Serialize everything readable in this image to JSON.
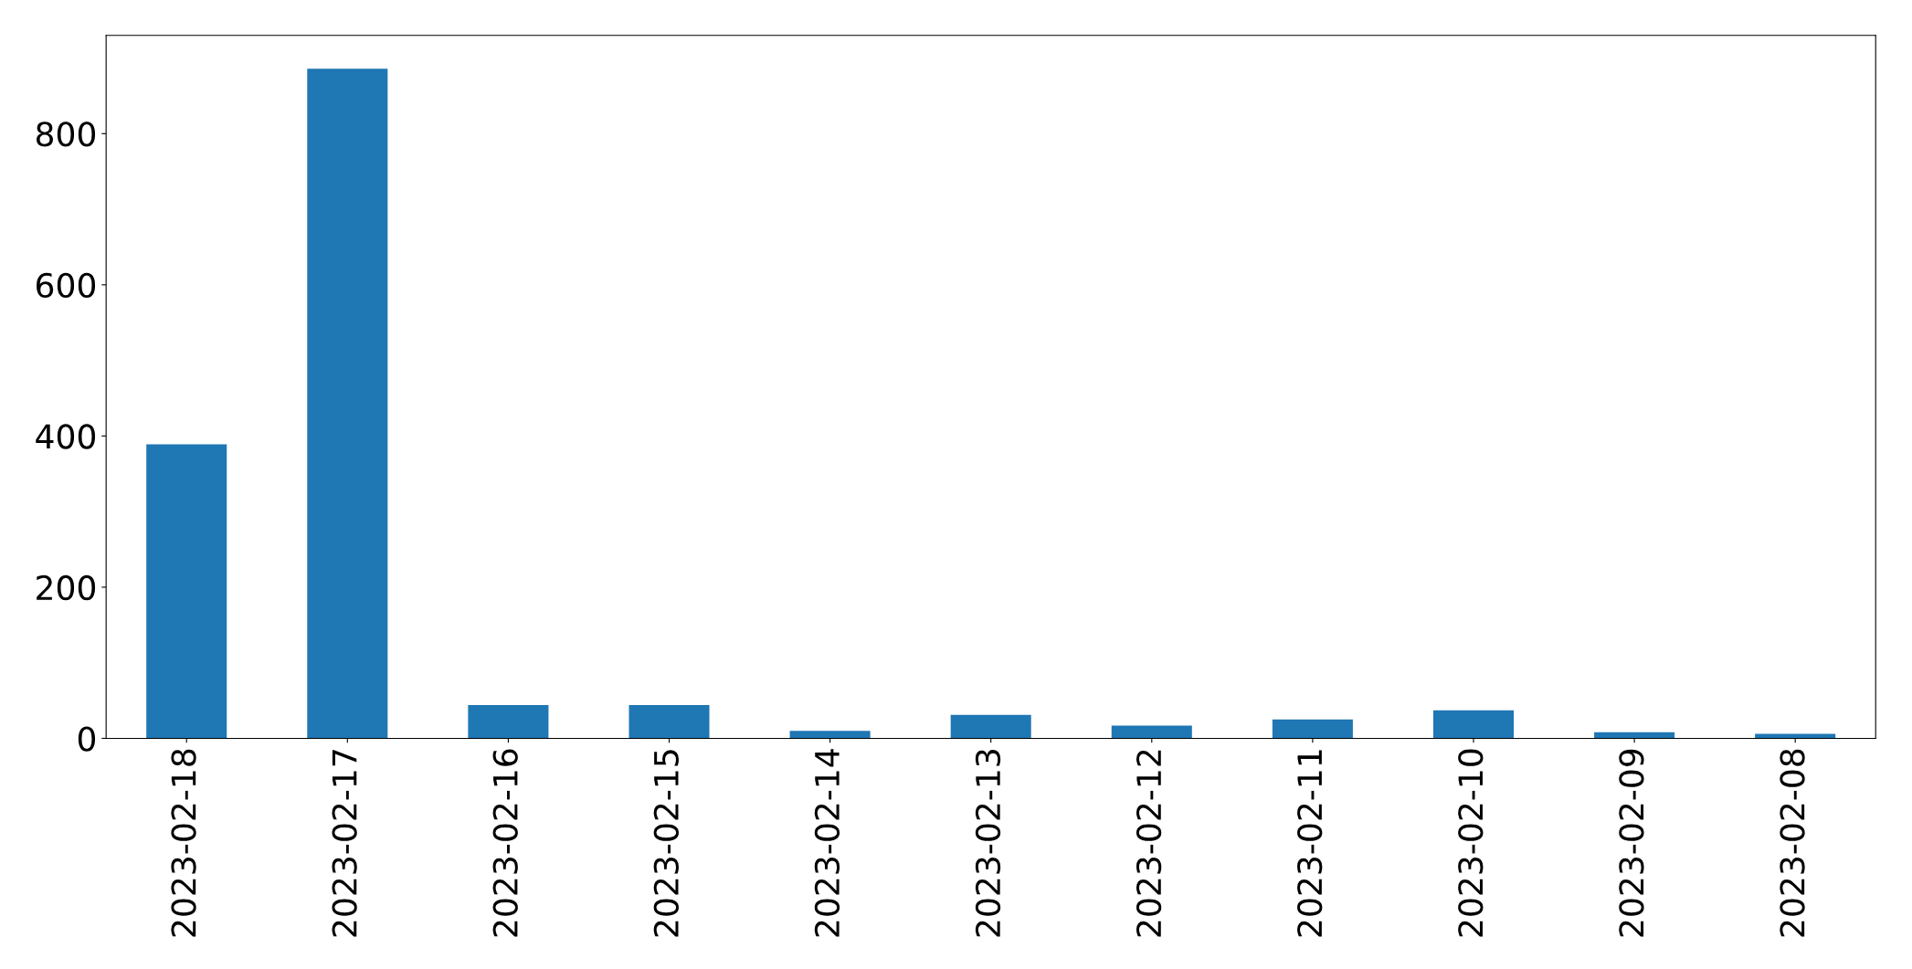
{
  "chart_data": {
    "type": "bar",
    "categories": [
      "2023-02-18",
      "2023-02-17",
      "2023-02-16",
      "2023-02-15",
      "2023-02-14",
      "2023-02-13",
      "2023-02-12",
      "2023-02-11",
      "2023-02-10",
      "2023-02-09",
      "2023-02-08"
    ],
    "values": [
      389,
      886,
      44,
      44,
      10,
      31,
      17,
      25,
      37,
      8,
      6
    ],
    "color": "#1f77b4",
    "ylim": [
      0,
      930
    ],
    "yticks": [
      0,
      200,
      400,
      600,
      800
    ],
    "grid": false,
    "legend": false
  }
}
